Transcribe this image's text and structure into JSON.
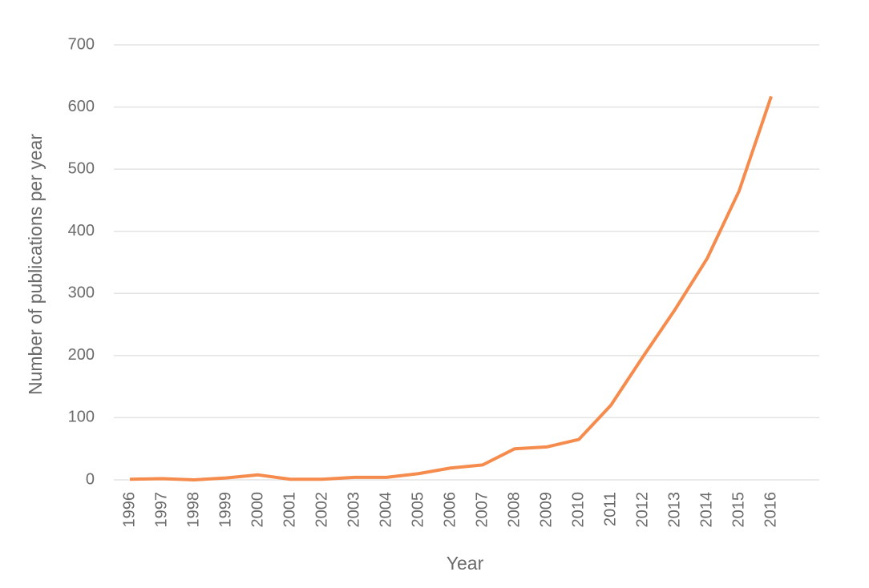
{
  "chart_data": {
    "type": "line",
    "x_label": "Year",
    "y_label": "Number of publications per year",
    "categories": [
      "1996",
      "1997",
      "1998",
      "1999",
      "2000",
      "2001",
      "2002",
      "2003",
      "2004",
      "2005",
      "2006",
      "2007",
      "2008",
      "2009",
      "2010",
      "2011",
      "2012",
      "2013",
      "2014",
      "2015",
      "2016"
    ],
    "values": [
      1,
      2,
      0,
      3,
      8,
      1,
      1,
      4,
      4,
      10,
      19,
      24,
      50,
      53,
      65,
      120,
      198,
      274,
      356,
      465,
      617
    ],
    "color": "#f58b4c",
    "ylim": [
      0,
      700
    ],
    "yticks": [
      0,
      100,
      200,
      300,
      400,
      500,
      600,
      700
    ],
    "grid": true
  }
}
